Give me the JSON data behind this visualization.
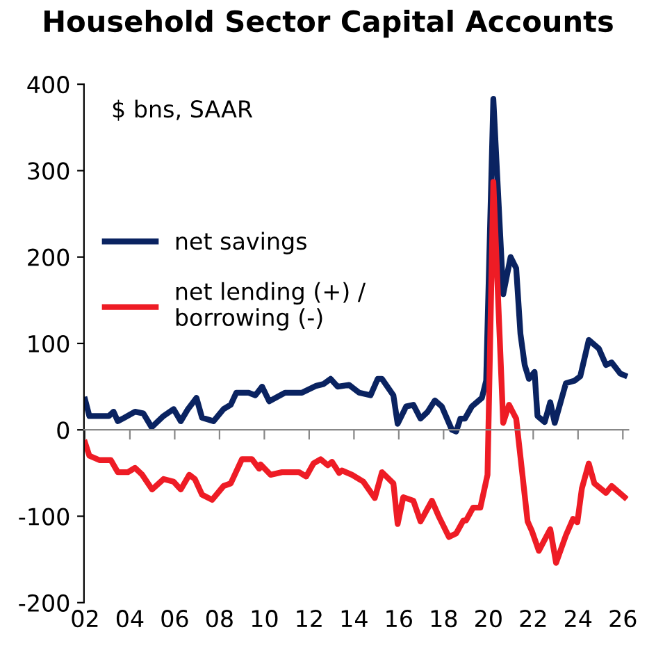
{
  "chart_data": {
    "type": "line",
    "title": "Household Sector Capital Accounts",
    "annotations": [
      "$ bns, SAAR"
    ],
    "series": [
      {
        "name": "net savings",
        "color": "#0a2361",
        "x": [
          2002.0,
          2002.19,
          2003.06,
          2003.27,
          2003.46,
          2003.75,
          2004.23,
          2004.6,
          2004.97,
          2005.5,
          2005.95,
          2006.27,
          2006.59,
          2006.97,
          2007.22,
          2007.73,
          2008.18,
          2008.5,
          2008.75,
          2009.3,
          2009.6,
          2009.9,
          2010.22,
          2010.92,
          2011.68,
          2012.32,
          2012.64,
          2012.96,
          2013.27,
          2013.78,
          2014.23,
          2014.74,
          2015.06,
          2015.25,
          2015.76,
          2015.95,
          2016.33,
          2016.65,
          2016.97,
          2017.29,
          2017.61,
          2017.92,
          2018.37,
          2018.56,
          2018.75,
          2018.95,
          2019.26,
          2019.71,
          2019.9,
          2020.22,
          2020.66,
          2020.99,
          2021.24,
          2021.43,
          2021.62,
          2021.81,
          2022.06,
          2022.19,
          2022.51,
          2022.76,
          2022.96,
          2023.46,
          2023.85,
          2024.1,
          2024.48,
          2024.93,
          2025.25,
          2025.5,
          2025.89,
          2026.08
        ],
        "values": [
          35,
          16,
          16,
          21,
          10,
          14,
          21,
          19,
          3,
          16,
          24,
          10,
          24,
          37,
          14,
          10,
          24,
          29,
          43,
          43,
          40,
          50,
          33,
          43,
          43,
          51,
          53,
          59,
          50,
          52,
          43,
          40,
          59,
          59,
          40,
          7,
          27,
          29,
          13,
          21,
          34,
          27,
          0,
          -2,
          13,
          13,
          27,
          37,
          57,
          383,
          157,
          200,
          187,
          111,
          75,
          59,
          67,
          16,
          9,
          32,
          8,
          54,
          57,
          62,
          104,
          94,
          75,
          78,
          65,
          63
        ]
      },
      {
        "name": "net lending (+) /\nborrowing (-)",
        "color": "#ee1c25",
        "x": [
          2002.0,
          2002.19,
          2002.64,
          2003.15,
          2003.46,
          2003.91,
          2004.23,
          2004.55,
          2004.99,
          2005.5,
          2005.95,
          2006.27,
          2006.65,
          2006.9,
          2007.22,
          2007.67,
          2008.18,
          2008.5,
          2009.0,
          2009.45,
          2009.77,
          2009.83,
          2010.28,
          2010.79,
          2011.55,
          2011.87,
          2012.19,
          2012.51,
          2012.83,
          2013.02,
          2013.34,
          2013.46,
          2013.91,
          2014.42,
          2014.93,
          2015.25,
          2015.76,
          2015.95,
          2016.2,
          2016.65,
          2016.97,
          2017.48,
          2017.8,
          2018.24,
          2018.56,
          2018.88,
          2019.0,
          2019.32,
          2019.64,
          2019.96,
          2020.22,
          2020.66,
          2020.92,
          2021.24,
          2021.75,
          2021.94,
          2022.25,
          2022.76,
          2023.02,
          2023.46,
          2023.78,
          2023.97,
          2024.17,
          2024.48,
          2024.73,
          2025.25,
          2025.5,
          2026.08
        ],
        "values": [
          -15,
          -30,
          -35,
          -35,
          -49,
          -49,
          -44,
          -52,
          -69,
          -57,
          -60,
          -69,
          -52,
          -57,
          -75,
          -81,
          -65,
          -62,
          -34,
          -34,
          -45,
          -40,
          -52,
          -49,
          -49,
          -54,
          -39,
          -34,
          -41,
          -37,
          -50,
          -47,
          -52,
          -60,
          -79,
          -49,
          -62,
          -109,
          -78,
          -82,
          -106,
          -82,
          -101,
          -124,
          -120,
          -105,
          -105,
          -90,
          -90,
          -52,
          287,
          8,
          29,
          13,
          -106,
          -117,
          -140,
          -115,
          -154,
          -122,
          -103,
          -107,
          -68,
          -39,
          -62,
          -73,
          -65,
          -78
        ]
      }
    ],
    "xlim": [
      2001.95,
      2026.25
    ],
    "xticks": [
      {
        "value": 2002,
        "label": "02"
      },
      {
        "value": 2004,
        "label": "04"
      },
      {
        "value": 2006,
        "label": "06"
      },
      {
        "value": 2008,
        "label": "08"
      },
      {
        "value": 2010,
        "label": "10"
      },
      {
        "value": 2012,
        "label": "12"
      },
      {
        "value": 2014,
        "label": "14"
      },
      {
        "value": 2016,
        "label": "16"
      },
      {
        "value": 2018,
        "label": "18"
      },
      {
        "value": 2020,
        "label": "20"
      },
      {
        "value": 2022,
        "label": "22"
      },
      {
        "value": 2024,
        "label": "24"
      },
      {
        "value": 2026,
        "label": "26"
      }
    ],
    "ylim": [
      -200,
      400
    ],
    "yticks": [
      -200,
      -100,
      0,
      100,
      200,
      300,
      400
    ],
    "legend": "left",
    "marker": "none",
    "line_style": "solid"
  }
}
